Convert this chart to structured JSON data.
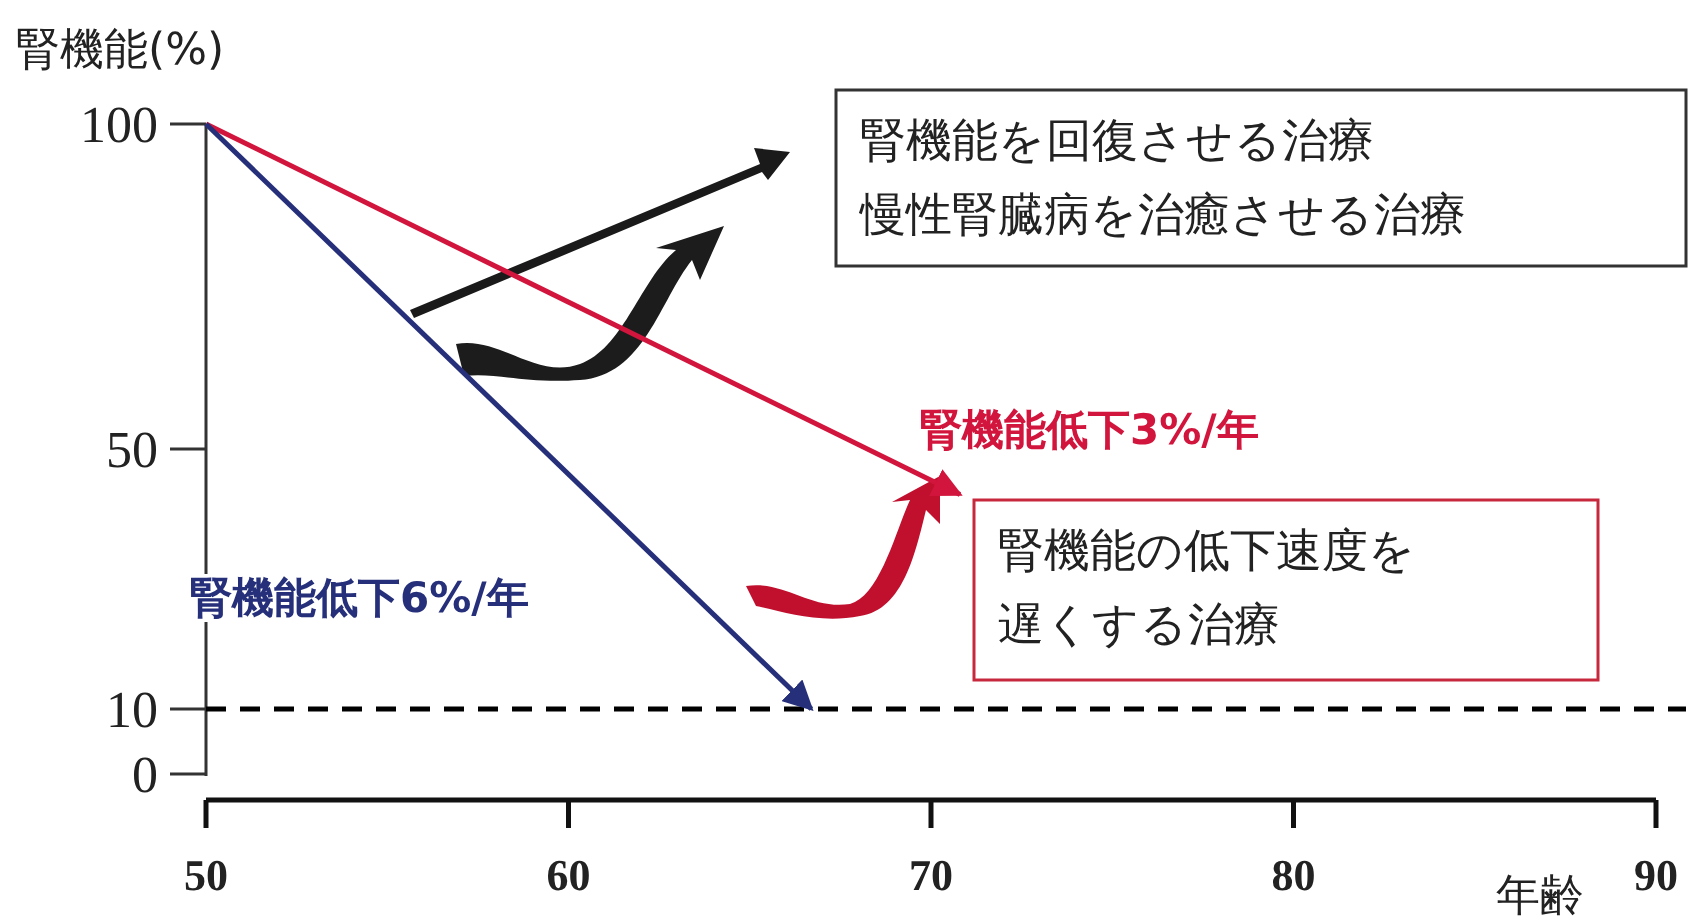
{
  "chart_data": {
    "type": "line",
    "ylabel": "腎機能(%)",
    "xlabel": "年齢",
    "xlim": [
      50,
      90
    ],
    "ylim": [
      -4,
      100
    ],
    "xticks": [
      50,
      60,
      70,
      80,
      90
    ],
    "yticks": [
      0,
      10,
      50,
      100
    ],
    "series": [
      {
        "name": "腎機能低下3%/年",
        "color": "#d2153c",
        "x": [
          50,
          70.8
        ],
        "values": [
          100,
          43
        ]
      },
      {
        "name": "腎機能低下6%/年",
        "color": "#26307a",
        "x": [
          50,
          66.7
        ],
        "values": [
          100,
          10
        ]
      }
    ],
    "ref_lines": [
      {
        "axis": "y",
        "value": 10,
        "color": "#000000",
        "line_style": "dashed"
      }
    ],
    "annotations": [
      "腎機能を回復させる治療",
      "慢性腎臓病を治癒させる治療",
      "腎機能の低下速度を",
      "遅くする治療"
    ]
  }
}
